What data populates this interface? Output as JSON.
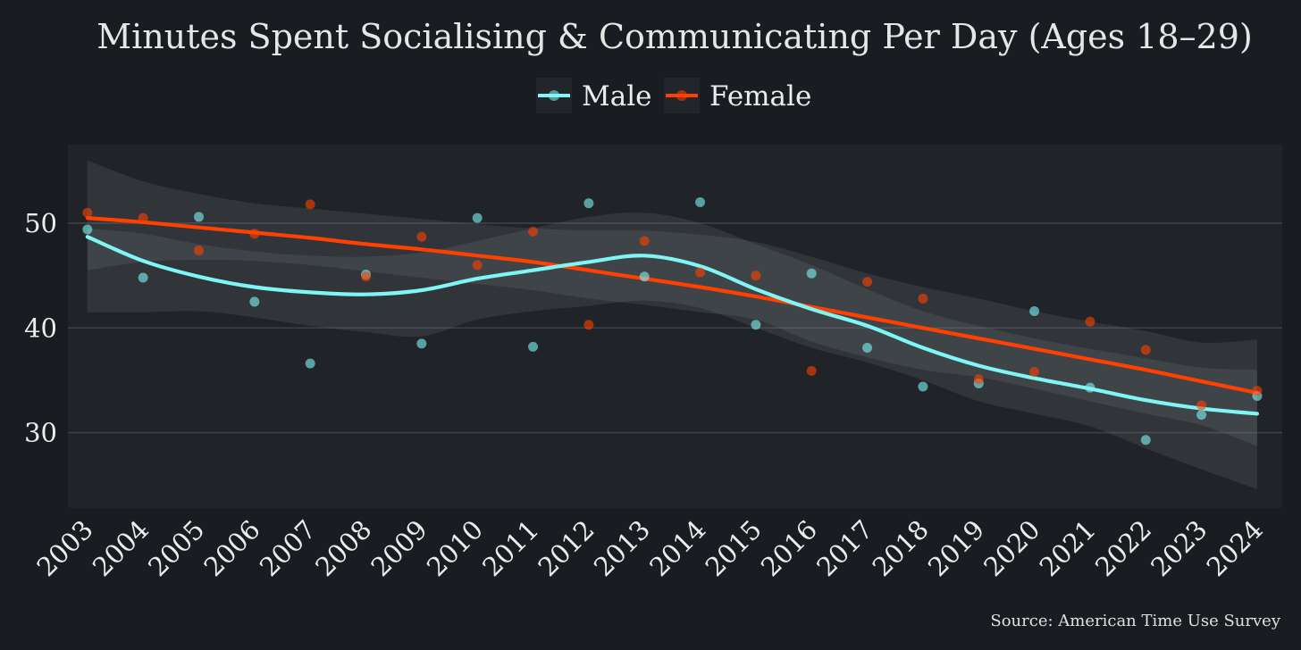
{
  "chart_data": {
    "type": "scatter",
    "title": "Minutes Spent Socialising & Communicating Per Day (Ages 18–29)",
    "source": "Source: American Time Use Survey",
    "xlabel": "",
    "ylabel": "",
    "x": [
      2003,
      2004,
      2005,
      2006,
      2007,
      2008,
      2009,
      2010,
      2011,
      2012,
      2013,
      2014,
      2015,
      2016,
      2017,
      2018,
      2019,
      2020,
      2021,
      2022,
      2023,
      2024
    ],
    "x_tick_labels": [
      "2003",
      "2004",
      "2005",
      "2006",
      "2007",
      "2008",
      "2009",
      "2010",
      "2011",
      "2012",
      "2013",
      "2014",
      "2015",
      "2016",
      "2017",
      "2018",
      "2019",
      "2020",
      "2021",
      "2022",
      "2023",
      "2024"
    ],
    "y_ticks": [
      30,
      40,
      50
    ],
    "y_tick_labels": [
      "30",
      "40",
      "50"
    ],
    "xlim": [
      2002.65,
      2024.45
    ],
    "ylim": [
      22.8,
      57.5
    ],
    "grid": "horizontal",
    "legend_position": "top-center",
    "series": [
      {
        "name": "Male",
        "color": "#7ff5f5",
        "values": [
          49.4,
          44.8,
          50.6,
          42.5,
          36.6,
          45.1,
          38.5,
          50.5,
          38.2,
          51.9,
          44.9,
          52.0,
          40.3,
          45.2,
          38.1,
          34.4,
          34.7,
          41.6,
          34.3,
          29.3,
          31.7,
          33.5
        ],
        "smooth": [
          48.7,
          46.4,
          44.9,
          43.9,
          43.4,
          43.2,
          43.6,
          44.7,
          45.5,
          46.3,
          46.9,
          45.9,
          43.7,
          41.8,
          40.2,
          38.1,
          36.4,
          35.2,
          34.2,
          33.1,
          32.3,
          31.8
        ],
        "ci_upper": [
          49.5,
          49.0,
          48.0,
          47.3,
          46.9,
          46.8,
          47.2,
          48.3,
          49.5,
          50.6,
          51.0,
          50.0,
          48.0,
          46.0,
          43.7,
          41.6,
          40.2,
          39.0,
          38.0,
          37.1,
          36.2,
          36.0
        ],
        "ci_lower": [
          41.5,
          41.5,
          41.6,
          41.0,
          40.2,
          39.6,
          39.2,
          40.8,
          41.6,
          42.1,
          42.6,
          41.9,
          40.0,
          38.1,
          36.7,
          35.0,
          33.0,
          31.8,
          30.6,
          28.5,
          26.5,
          24.6
        ]
      },
      {
        "name": "Female",
        "color": "#ff4000",
        "values": [
          51.0,
          50.5,
          47.4,
          49.0,
          51.8,
          44.9,
          48.7,
          46.0,
          49.2,
          40.3,
          48.3,
          45.3,
          45.0,
          35.9,
          44.4,
          42.8,
          35.1,
          35.8,
          40.6,
          37.9,
          32.6,
          34.0
        ],
        "smooth": [
          50.5,
          50.1,
          49.6,
          49.1,
          48.6,
          48.0,
          47.5,
          46.9,
          46.3,
          45.5,
          44.7,
          43.9,
          43.0,
          42.0,
          41.0,
          40.0,
          39.0,
          38.0,
          37.0,
          36.0,
          34.9,
          33.8
        ],
        "ci_upper": [
          56.0,
          54.0,
          52.8,
          51.9,
          51.4,
          50.9,
          50.4,
          49.9,
          49.5,
          49.3,
          49.3,
          48.9,
          48.2,
          46.8,
          45.2,
          43.9,
          42.8,
          41.6,
          40.6,
          39.7,
          38.6,
          38.9
        ],
        "ci_lower": [
          45.5,
          46.3,
          46.5,
          46.4,
          46.0,
          45.4,
          44.8,
          44.2,
          43.6,
          42.8,
          42.2,
          41.5,
          40.8,
          38.7,
          37.2,
          36.0,
          35.3,
          34.2,
          33.0,
          31.8,
          30.7,
          28.7
        ]
      }
    ]
  }
}
